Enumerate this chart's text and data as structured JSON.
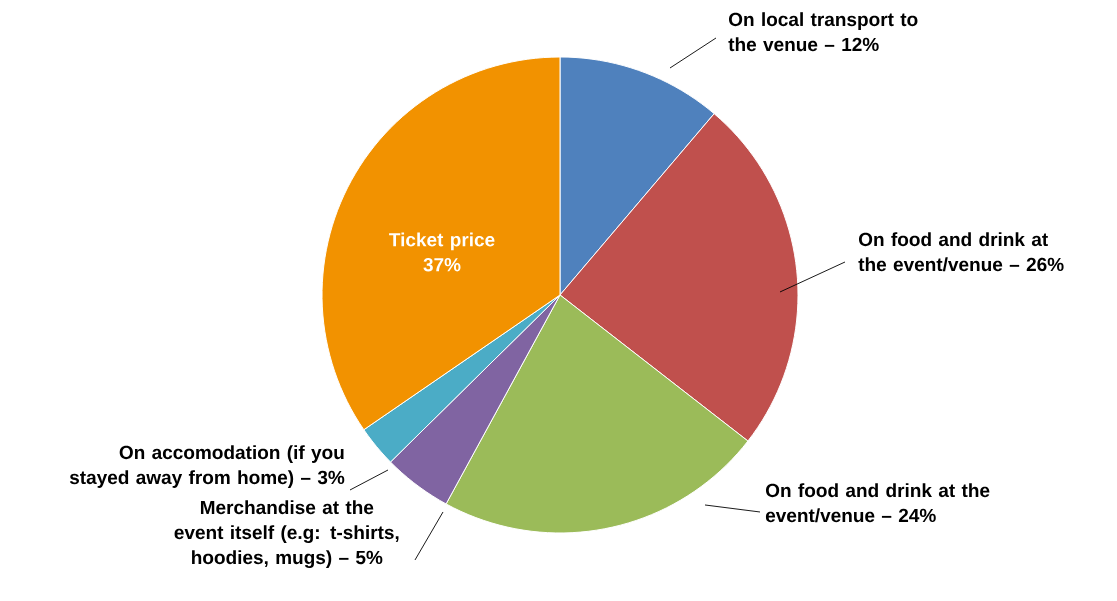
{
  "chart_data": {
    "type": "pie",
    "categories": [
      "On local transport to the venue –",
      "On food and drink at the event/venue –",
      "On food and drink at the event/venue –",
      "Merchandise at the event itself (e.g: t-shirts, hoodies, mugs) –",
      "On accomodation (if you stayed away from home) –",
      "Ticket price"
    ],
    "values": [
      12,
      26,
      24,
      5,
      3,
      37
    ],
    "value_labels": [
      "12%",
      "26%",
      "24%",
      "5%",
      "3%",
      "37%"
    ],
    "colors": [
      "#4f81bd",
      "#c0504d",
      "#9bbb59",
      "#8064a2",
      "#4bacc6",
      "#f29200"
    ]
  }
}
